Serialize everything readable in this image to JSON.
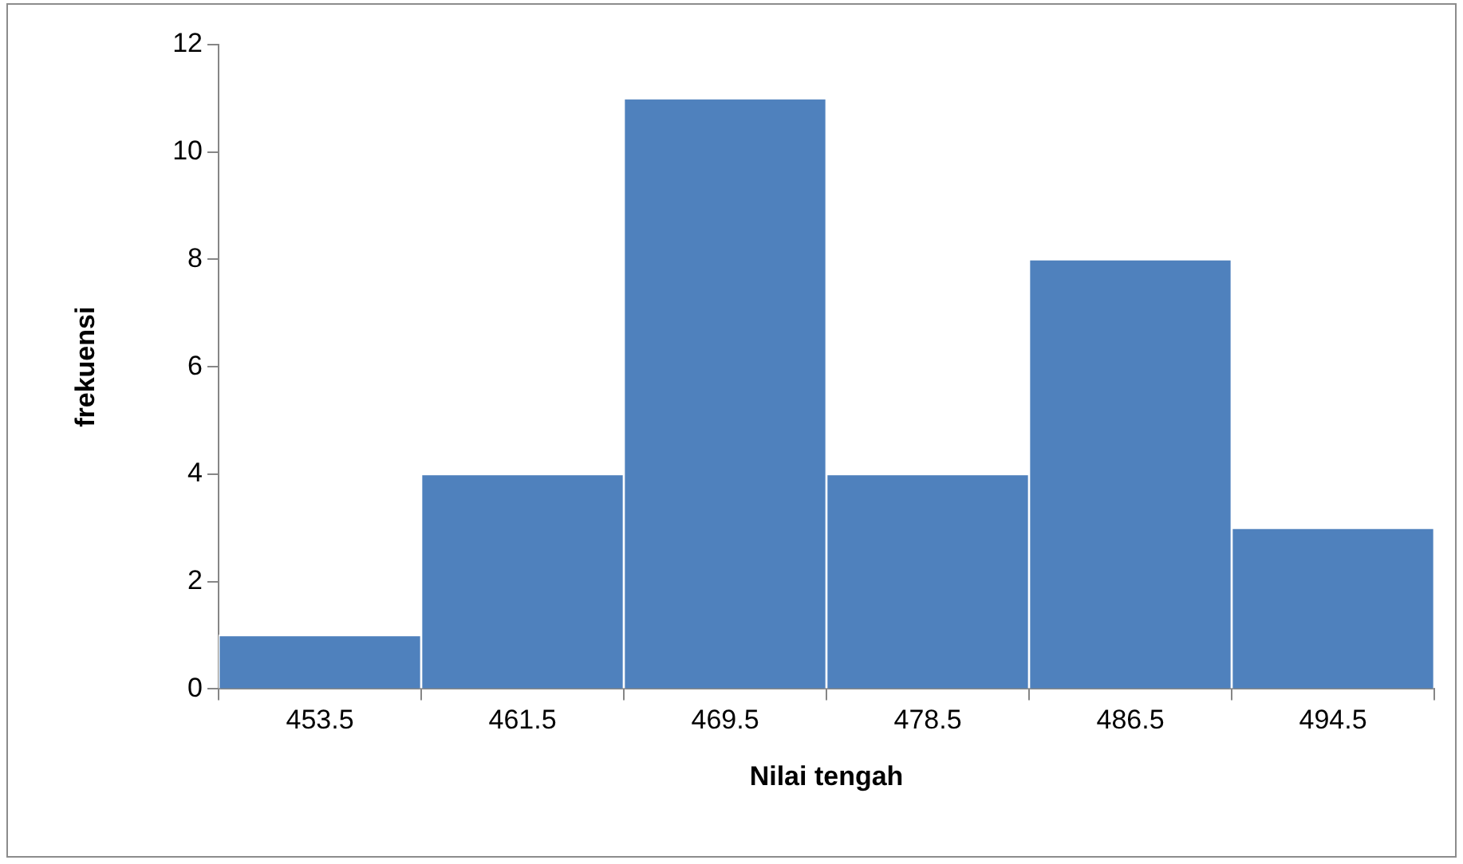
{
  "chart_data": {
    "type": "bar",
    "xlabel": "Nilai tengah",
    "ylabel": "frekuensi",
    "categories": [
      "453.5",
      "461.5",
      "469.5",
      "478.5",
      "486.5",
      "494.5"
    ],
    "values": [
      1,
      4,
      11,
      4,
      8,
      3
    ],
    "color": "#4f81bd",
    "ylim": [
      0,
      12
    ],
    "yticks": [
      0,
      2,
      4,
      6,
      8,
      10,
      12
    ],
    "grid": false,
    "legend": false
  }
}
